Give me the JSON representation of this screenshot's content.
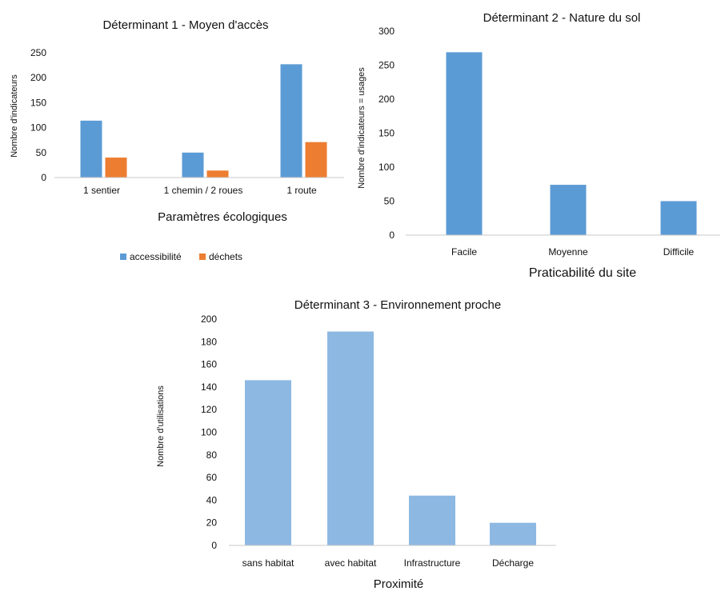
{
  "chart_data": [
    {
      "type": "bar",
      "title": "Déterminant 1 - Moyen d'accès",
      "xlabel": "Paramètres écologiques",
      "ylabel": "Nombre d'indicateurs",
      "categories": [
        "1 sentier",
        "1 chemin / 2 roues",
        "1 route"
      ],
      "ylim": [
        0,
        250
      ],
      "yticks": [
        0,
        50,
        100,
        150,
        200,
        250
      ],
      "grid": false,
      "legend": "bottom",
      "series": [
        {
          "name": "accessibilité",
          "values": [
            114,
            50,
            227
          ],
          "color": "#5b9bd5"
        },
        {
          "name": "déchets",
          "values": [
            40,
            14,
            71
          ],
          "color": "#ed7d31"
        }
      ]
    },
    {
      "type": "bar",
      "title": "Déterminant 2 - Nature du sol",
      "xlabel": "Praticabilité du site",
      "ylabel": "Nombre d'indicateurs = usages",
      "categories": [
        "Facile",
        "Moyenne",
        "Difficile"
      ],
      "ylim": [
        0,
        300
      ],
      "yticks": [
        0,
        50,
        100,
        150,
        200,
        250,
        300
      ],
      "grid": false,
      "series": [
        {
          "values": [
            269,
            74,
            50
          ],
          "color": "#5b9bd5"
        }
      ]
    },
    {
      "type": "bar",
      "title": "Déterminant 3 - Environnement proche",
      "xlabel": "Proximité",
      "ylabel": "Nombre d'utilisations",
      "categories": [
        "sans habitat",
        "avec habitat",
        "Infrastructure",
        "Décharge"
      ],
      "ylim": [
        0,
        200
      ],
      "yticks": [
        0,
        20,
        40,
        60,
        80,
        100,
        120,
        140,
        160,
        180,
        200
      ],
      "grid": false,
      "series": [
        {
          "values": [
            146,
            189,
            44,
            20
          ],
          "color": "#8db8e2"
        }
      ]
    }
  ]
}
